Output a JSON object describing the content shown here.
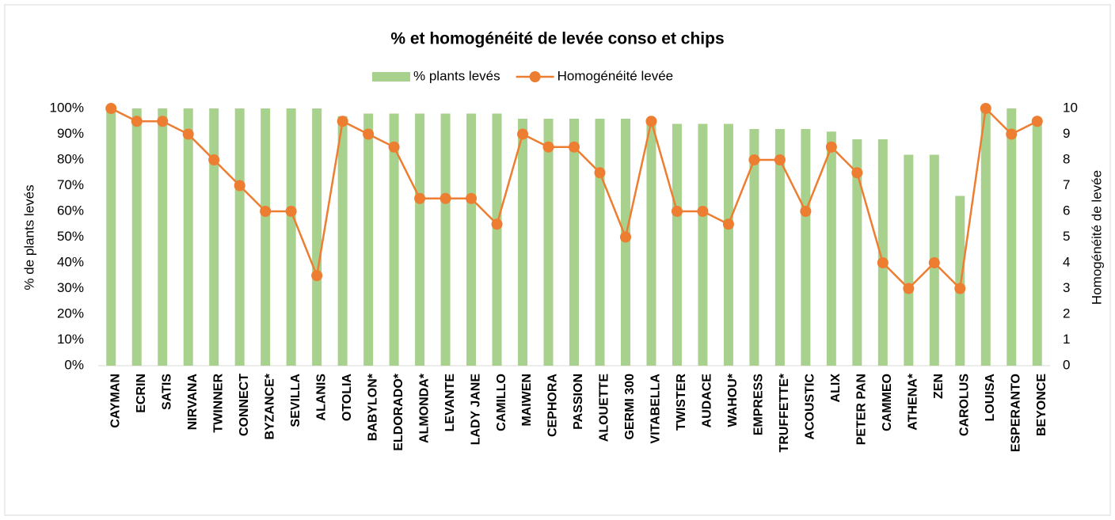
{
  "chart_data": {
    "type": "bar",
    "title": "% et homogénéité de levée conso et chips",
    "y_label": "% de plants levés",
    "y2_label": "Homogénéité de levée",
    "categories": [
      "CAYMAN",
      "ECRIN",
      "SATIS",
      "NIRVANA",
      "TWINNER",
      "CONNECT",
      "BYZANCE*",
      "SEVILLA",
      "ALANIS",
      "OTOLIA",
      "BABYLON*",
      "ELDORADO*",
      "ALMONDA*",
      "LEVANTE",
      "LADY JANE",
      "CAMILLO",
      "MAIWEN",
      "CEPHORA",
      "PASSION",
      "ALOUETTE",
      "GERMI 300",
      "VITABELLA",
      "TWISTER",
      "AUDACE",
      "WAHOU*",
      "EMPRESS",
      "TRUFFETTE*",
      "ACOUSTIC",
      "ALIX",
      "PETER PAN",
      "CAMMEO",
      "ATHENA*",
      "ZEN",
      "CAROLUS",
      "LOUISA",
      "ESPERANTO",
      "BEYONCE"
    ],
    "series": [
      {
        "name": "% plants levés",
        "type": "bar",
        "color": "#a9d18e",
        "values": [
          100,
          100,
          100,
          100,
          100,
          100,
          100,
          100,
          100,
          97,
          98,
          98,
          98,
          98,
          98,
          98,
          96,
          96,
          96,
          96,
          96,
          96,
          94,
          94,
          94,
          92,
          92,
          92,
          91,
          88,
          88,
          82,
          82,
          66,
          100,
          100,
          96
        ]
      },
      {
        "name": "Homogénéité levée",
        "type": "line",
        "axis": "y2",
        "color": "#ed7d31",
        "values": [
          10,
          9.5,
          9.5,
          9,
          8,
          7,
          6,
          6,
          3.5,
          9.5,
          9,
          8.5,
          6.5,
          6.5,
          6.5,
          5.5,
          9,
          8.5,
          8.5,
          7.5,
          5,
          9.5,
          6,
          6,
          5.5,
          8,
          8,
          6,
          8.5,
          7.5,
          4,
          3,
          4,
          3,
          10,
          9,
          9.5
        ]
      }
    ],
    "ylim": [
      0,
      100
    ],
    "yticks": [
      {
        "value": 0,
        "label": "0%"
      },
      {
        "value": 10,
        "label": "10%"
      },
      {
        "value": 20,
        "label": "20%"
      },
      {
        "value": 30,
        "label": "30%"
      },
      {
        "value": 40,
        "label": "40%"
      },
      {
        "value": 50,
        "label": "50%"
      },
      {
        "value": 60,
        "label": "60%"
      },
      {
        "value": 70,
        "label": "70%"
      },
      {
        "value": 80,
        "label": "80%"
      },
      {
        "value": 90,
        "label": "90%"
      },
      {
        "value": 100,
        "label": "100%"
      }
    ],
    "y2lim": [
      0,
      10
    ],
    "y2ticks": [
      0,
      1,
      2,
      3,
      4,
      5,
      6,
      7,
      8,
      9,
      10
    ],
    "legend": "top"
  }
}
